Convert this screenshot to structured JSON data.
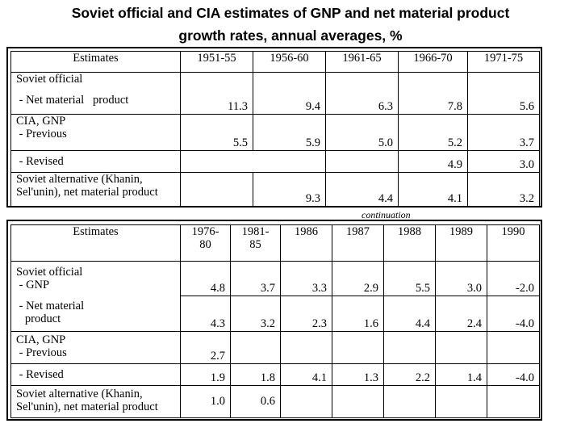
{
  "title_line1": "Soviet official and CIA estimates of GNP and net material product",
  "title_line2": "growth rates, annual averages, %",
  "table1": {
    "header": [
      "Estimates",
      "1951-55",
      "1956-60",
      "1961-65",
      "1966-70",
      "1971-75"
    ],
    "rows": {
      "soviet_official": "Soviet official",
      "nmp": {
        "label": " - Net material   product",
        "values": [
          "11.3",
          "9.4",
          "6.3",
          "7.8",
          "5.6"
        ]
      },
      "cia_gnp": {
        "label1": "CIA, GNP",
        "label2": " - Previous",
        "values": [
          "5.5",
          "5.9",
          "5.0",
          "5.2",
          "3.7"
        ]
      },
      "revised": {
        "label": " - Revised",
        "values": [
          "",
          "",
          "",
          "4.9",
          "3.0"
        ]
      },
      "alternative": {
        "label1": "Soviet alternative (Khanin,",
        "label2": "Sel'unin), net material product",
        "values": [
          "",
          "9.3",
          "4.4",
          "4.1",
          "3.2"
        ]
      }
    }
  },
  "continuation": "continuation",
  "table2": {
    "header": [
      "Estimates",
      "1976-\n80",
      "1981-\n85",
      "1986",
      "1987",
      "1988",
      "1989",
      "1990"
    ],
    "rows": {
      "gnp": {
        "label1": "Soviet official",
        "label2": " - GNP",
        "values": [
          "4.8",
          "3.7",
          "3.3",
          "2.9",
          "5.5",
          "3.0",
          "-2.0"
        ]
      },
      "nmp": {
        "label1": " - Net material",
        "label2": "   product",
        "values": [
          "4.3",
          "3.2",
          "2.3",
          "1.6",
          "4.4",
          "2.4",
          "-4.0"
        ]
      },
      "cia_prev": {
        "label1": "CIA, GNP",
        "label2": " - Previous",
        "values": [
          "2.7",
          "",
          "",
          "",
          "",
          "",
          ""
        ]
      },
      "revised": {
        "label": " - Revised",
        "values": [
          "1.9",
          "1.8",
          "4.1",
          "1.3",
          "2.2",
          "1.4",
          "-4.0"
        ]
      },
      "alternative": {
        "label1": "Soviet alternative (Khanin,",
        "label2": "Sel'unin), net material product",
        "values": [
          "1.0",
          "0.6",
          "",
          "",
          "",
          "",
          ""
        ]
      }
    }
  }
}
